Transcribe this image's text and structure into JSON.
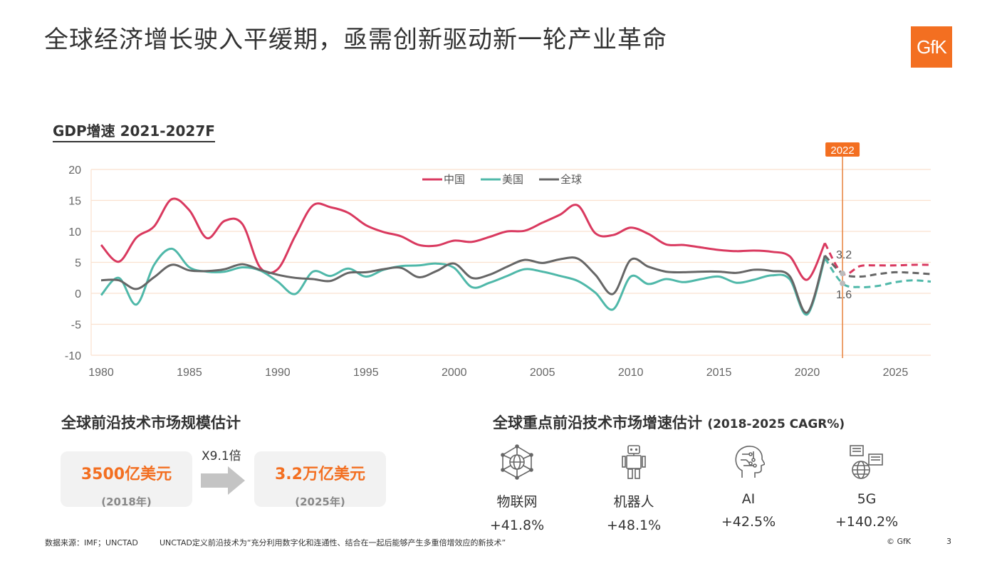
{
  "page": {
    "title": "全球经济增长驶入平缓期，亟需创新驱动新一轮产业革命",
    "logo_text": "GfK",
    "page_number": "3",
    "copyright": "© GfK"
  },
  "chart_section": {
    "title": "GDP增速 2021-2027F"
  },
  "chart_data": {
    "type": "line",
    "title": "GDP增速 2021-2027F",
    "xlim": [
      1980,
      2027
    ],
    "ylim": [
      -10,
      20
    ],
    "x_ticks": [
      1980,
      1985,
      1990,
      1995,
      2000,
      2005,
      2010,
      2015,
      2020,
      2025
    ],
    "y_ticks": [
      -10,
      -5,
      0,
      5,
      10,
      15,
      20
    ],
    "legend_position": "top-center",
    "grid": "horizontal",
    "marker_line": {
      "x": 2022,
      "label": "2022"
    },
    "annotations": [
      {
        "text": "3.2",
        "x": 2022,
        "y": 3.2
      },
      {
        "text": "1.6",
        "x": 2022,
        "y": 1.6
      }
    ],
    "series": [
      {
        "name": "中国",
        "color": "#d9395f",
        "x": [
          1980,
          1981,
          1982,
          1983,
          1984,
          1985,
          1986,
          1987,
          1988,
          1989,
          1990,
          1991,
          1992,
          1993,
          1994,
          1995,
          1996,
          1997,
          1998,
          1999,
          2000,
          2001,
          2002,
          2003,
          2004,
          2005,
          2006,
          2007,
          2008,
          2009,
          2010,
          2011,
          2012,
          2013,
          2014,
          2015,
          2016,
          2017,
          2018,
          2019,
          2020,
          2021
        ],
        "values": [
          7.8,
          5.1,
          9.0,
          10.8,
          15.2,
          13.4,
          8.9,
          11.7,
          11.2,
          4.2,
          3.9,
          9.3,
          14.2,
          13.9,
          13.0,
          11.0,
          9.9,
          9.2,
          7.8,
          7.7,
          8.5,
          8.3,
          9.1,
          10.0,
          10.1,
          11.4,
          12.7,
          14.2,
          9.7,
          9.4,
          10.6,
          9.6,
          7.9,
          7.8,
          7.4,
          7.0,
          6.8,
          6.9,
          6.7,
          6.0,
          2.2,
          8.1
        ],
        "forecast_x": [
          2022,
          2023,
          2024,
          2025,
          2026,
          2027
        ],
        "forecast_values": [
          3.2,
          4.4,
          4.5,
          4.5,
          4.6,
          4.6
        ]
      },
      {
        "name": "美国",
        "color": "#4fb8a9",
        "x": [
          1980,
          1981,
          1982,
          1983,
          1984,
          1985,
          1986,
          1987,
          1988,
          1989,
          1990,
          1991,
          1992,
          1993,
          1994,
          1995,
          1996,
          1997,
          1998,
          1999,
          2000,
          2001,
          2002,
          2003,
          2004,
          2005,
          2006,
          2007,
          2008,
          2009,
          2010,
          2011,
          2012,
          2013,
          2014,
          2015,
          2016,
          2017,
          2018,
          2019,
          2020,
          2021
        ],
        "values": [
          -0.3,
          2.5,
          -1.8,
          4.6,
          7.2,
          4.2,
          3.5,
          3.5,
          4.2,
          3.7,
          1.9,
          -0.1,
          3.5,
          2.8,
          4.0,
          2.7,
          3.8,
          4.4,
          4.5,
          4.8,
          4.1,
          1.0,
          1.7,
          2.8,
          3.9,
          3.5,
          2.8,
          2.0,
          0.1,
          -2.6,
          2.7,
          1.5,
          2.3,
          1.8,
          2.3,
          2.7,
          1.7,
          2.2,
          2.9,
          2.3,
          -3.4,
          5.7
        ],
        "forecast_x": [
          2022,
          2023,
          2024,
          2025,
          2026,
          2027
        ],
        "forecast_values": [
          1.6,
          1.0,
          1.2,
          1.8,
          2.1,
          1.9
        ]
      },
      {
        "name": "全球",
        "color": "#666666",
        "x": [
          1980,
          1981,
          1982,
          1983,
          1984,
          1985,
          1986,
          1987,
          1988,
          1989,
          1990,
          1991,
          1992,
          1993,
          1994,
          1995,
          1996,
          1997,
          1998,
          1999,
          2000,
          2001,
          2002,
          2003,
          2004,
          2005,
          2006,
          2007,
          2008,
          2009,
          2010,
          2011,
          2012,
          2013,
          2014,
          2015,
          2016,
          2017,
          2018,
          2019,
          2020,
          2021
        ],
        "values": [
          2.1,
          2.1,
          0.7,
          2.6,
          4.6,
          3.7,
          3.6,
          3.9,
          4.7,
          3.8,
          3.0,
          2.5,
          2.3,
          2.0,
          3.3,
          3.4,
          3.9,
          4.1,
          2.6,
          3.6,
          4.8,
          2.5,
          3.0,
          4.3,
          5.4,
          4.9,
          5.5,
          5.6,
          3.0,
          -0.1,
          5.4,
          4.3,
          3.5,
          3.4,
          3.5,
          3.5,
          3.3,
          3.8,
          3.6,
          2.8,
          -3.1,
          6.1
        ],
        "forecast_x": [
          2022,
          2023,
          2024,
          2025,
          2026,
          2027
        ],
        "forecast_values": [
          3.2,
          2.7,
          3.1,
          3.4,
          3.3,
          3.1
        ]
      }
    ]
  },
  "market_size": {
    "title": "全球前沿技术市场规模估计",
    "multiplier": "X9.1倍",
    "from": {
      "value": "3500亿美元",
      "year": "(2018年)"
    },
    "to": {
      "value": "3.2万亿美元",
      "year": "(2025年)"
    }
  },
  "growth": {
    "title": "全球重点前沿技术市场增速估计",
    "subtitle": "(2018-2025 CAGR%)",
    "items": [
      {
        "icon": "network-globe-icon",
        "name": "物联网",
        "value": "+41.8%"
      },
      {
        "icon": "robot-icon",
        "name": "机器人",
        "value": "+48.1%"
      },
      {
        "icon": "ai-head-icon",
        "name": "AI",
        "value": "+42.5%"
      },
      {
        "icon": "5g-network-icon",
        "name": "5G",
        "value": "+140.2%"
      }
    ]
  },
  "footer": {
    "source": "数据来源：IMF；UNCTAD",
    "note": "UNCTAD定义前沿技术为“充分利用数字化和连通性、结合在一起后能够产生多重倍增效应的新技术”"
  },
  "colors": {
    "accent": "#f36f21",
    "china": "#d9395f",
    "usa": "#4fb8a9",
    "world": "#666666"
  }
}
